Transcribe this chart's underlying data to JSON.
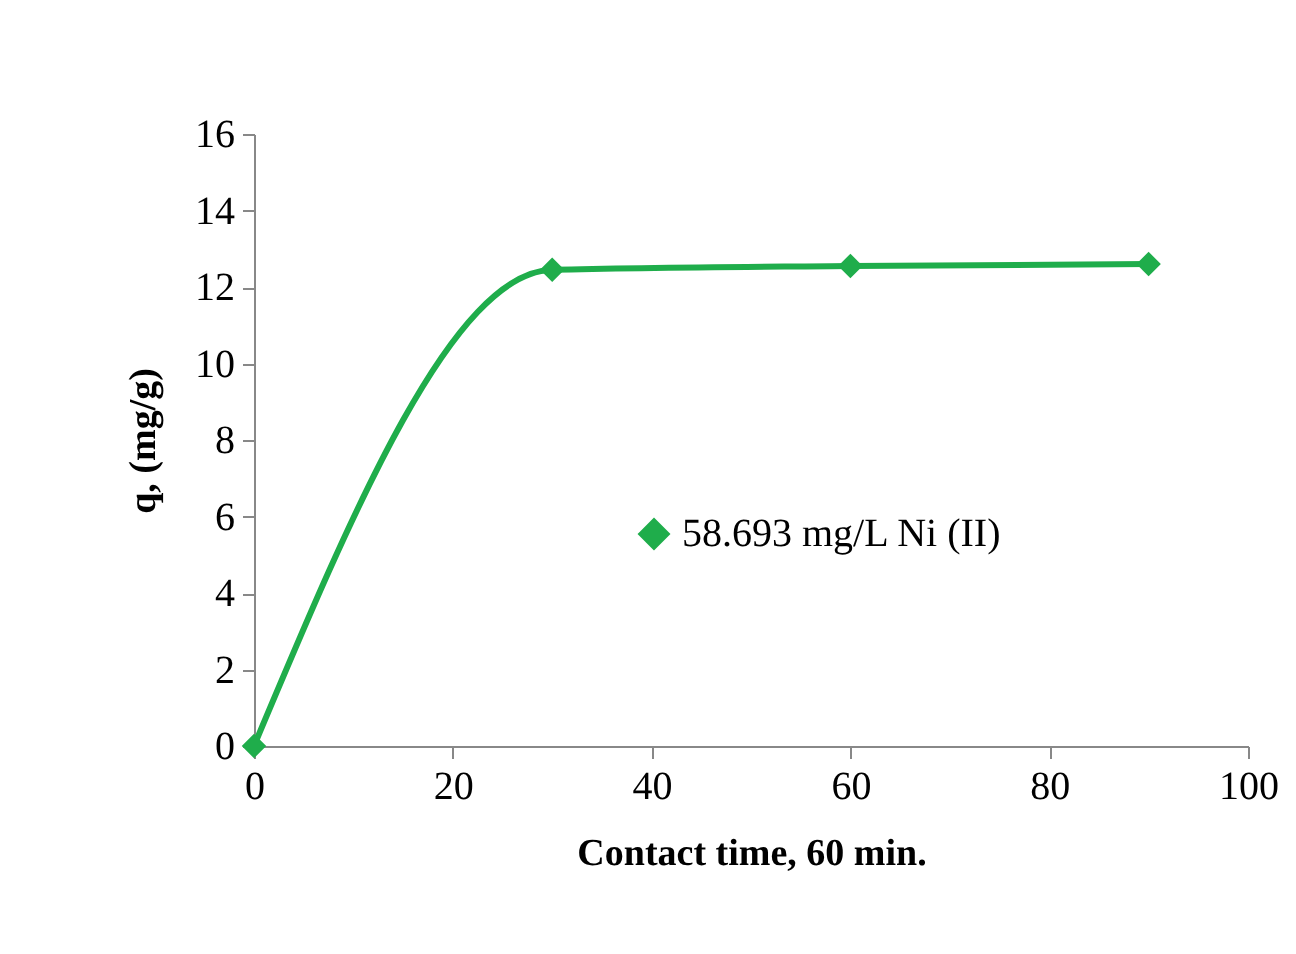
{
  "chart_data": {
    "type": "line",
    "xlabel": "Contact time, 60 min.",
    "ylabel": "q, (mg/g)",
    "x": [
      0,
      30,
      60,
      90
    ],
    "series": [
      {
        "name": "58.693 mg/L Ni (II)",
        "color": "#1fad4b",
        "values": [
          0,
          12.45,
          12.55,
          12.6
        ]
      }
    ],
    "xlim": [
      0,
      100
    ],
    "xticks": [
      0,
      20,
      40,
      60,
      80,
      100
    ],
    "ylim": [
      0,
      16
    ],
    "yticks": [
      0,
      2,
      4,
      6,
      8,
      10,
      12,
      14,
      16
    ],
    "grid": false,
    "legend": "right",
    "marker": "diamond",
    "line_style": "solid"
  }
}
